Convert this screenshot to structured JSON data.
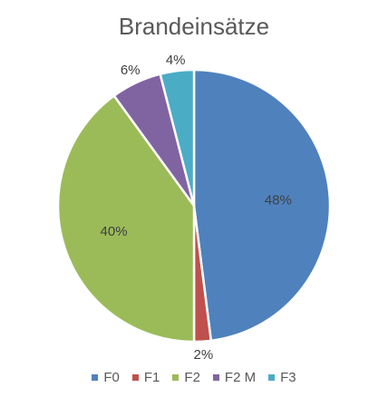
{
  "chart_data": {
    "type": "pie",
    "title": "Brandeinsätze",
    "categories": [
      "F0",
      "F1",
      "F2",
      "F2 M",
      "F3"
    ],
    "values": [
      48,
      2,
      40,
      6,
      4
    ],
    "data_labels": [
      "48%",
      "2%",
      "40%",
      "6%",
      "4%"
    ],
    "colors": [
      "#4F81BD",
      "#C0504D",
      "#9BBB59",
      "#8064A2",
      "#4BACC6"
    ],
    "legend_position": "bottom",
    "start_angle_deg": 0,
    "direction": "clockwise"
  }
}
